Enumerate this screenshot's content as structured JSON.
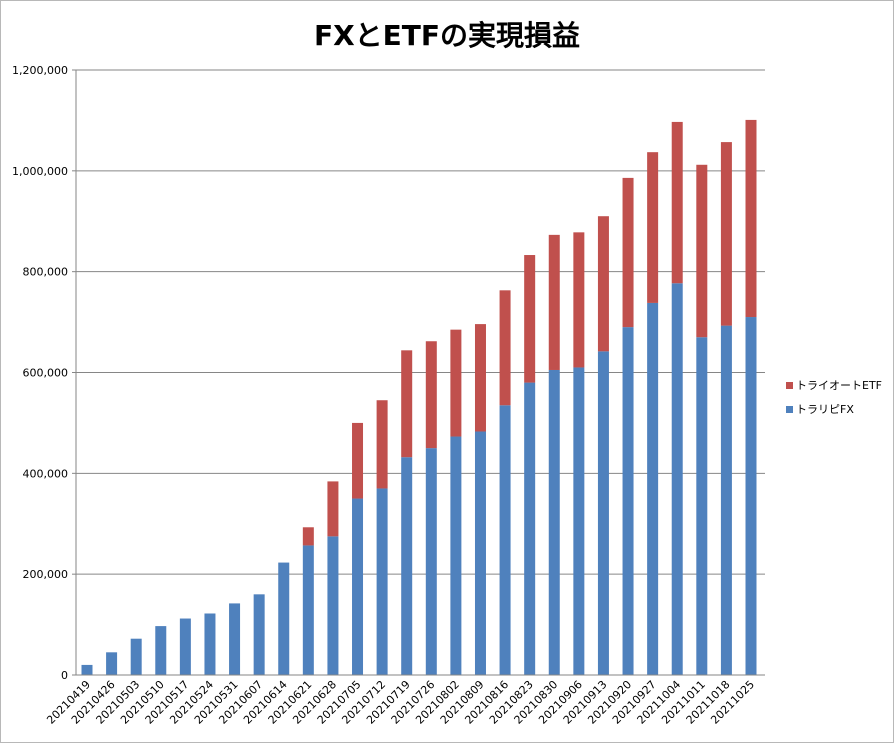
{
  "chart_data": {
    "type": "bar",
    "stacked": true,
    "title": "FXとETFの実現損益",
    "xlabel": "",
    "ylabel": "",
    "ylim": [
      0,
      1200000
    ],
    "yticks": [
      0,
      200000,
      400000,
      600000,
      800000,
      1000000,
      1200000
    ],
    "ytick_labels": [
      "0",
      "200,000",
      "400,000",
      "600,000",
      "800,000",
      "1,000,000",
      "1,200,000"
    ],
    "grid": true,
    "legend_position": "right",
    "categories": [
      "20210419",
      "20210426",
      "20210503",
      "20210510",
      "20210517",
      "20210524",
      "20210531",
      "20210607",
      "20210614",
      "20210621",
      "20210628",
      "20210705",
      "20210712",
      "20210719",
      "20210726",
      "20210802",
      "20210809",
      "20210816",
      "20210823",
      "20210830",
      "20210906",
      "20210913",
      "20210920",
      "20210927",
      "20211004",
      "20211011",
      "20211018",
      "20211025"
    ],
    "series": [
      {
        "name": "トラリピFX",
        "color": "#4F81BD",
        "values": [
          20000,
          45000,
          72000,
          97000,
          112000,
          122000,
          142000,
          160000,
          223000,
          257000,
          275000,
          350000,
          370000,
          432000,
          450000,
          473000,
          483000,
          535000,
          580000,
          605000,
          610000,
          642000,
          690000,
          738000,
          777000,
          670000,
          693000,
          710000
        ]
      },
      {
        "name": "トライオートETF",
        "color": "#C0504D",
        "values": [
          0,
          0,
          0,
          0,
          0,
          0,
          0,
          0,
          0,
          36000,
          109000,
          150000,
          175000,
          212000,
          212000,
          212000,
          213000,
          228000,
          253000,
          268000,
          268000,
          268000,
          296000,
          299000,
          320000,
          342000,
          364000,
          391000
        ]
      }
    ]
  }
}
